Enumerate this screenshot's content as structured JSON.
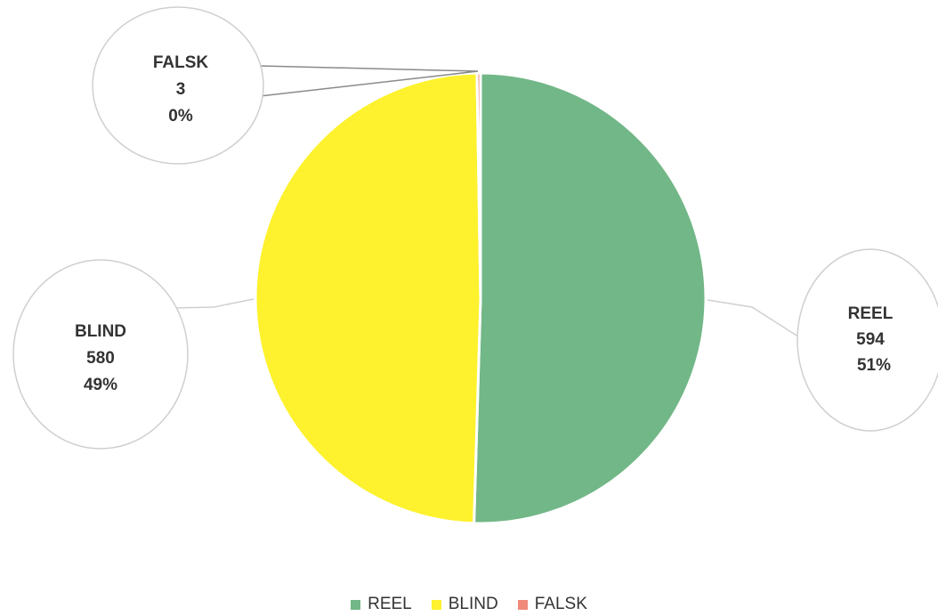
{
  "chart_data": {
    "type": "pie",
    "categories": [
      "REEL",
      "BLIND",
      "FALSK"
    ],
    "values": [
      594,
      580,
      3
    ],
    "percent_labels": [
      "51%",
      "49%",
      "0%"
    ],
    "colors": [
      "#72b787",
      "#fdf22d",
      "#f08a7a"
    ],
    "data_labels": [
      {
        "name": "REEL",
        "value": "594",
        "percent": "51%"
      },
      {
        "name": "BLIND",
        "value": "580",
        "percent": "49%"
      },
      {
        "name": "FALSK",
        "value": "3",
        "percent": "0%"
      }
    ],
    "legend": {
      "position": "bottom",
      "entries": [
        "REEL",
        "BLIND",
        "FALSK"
      ]
    }
  }
}
